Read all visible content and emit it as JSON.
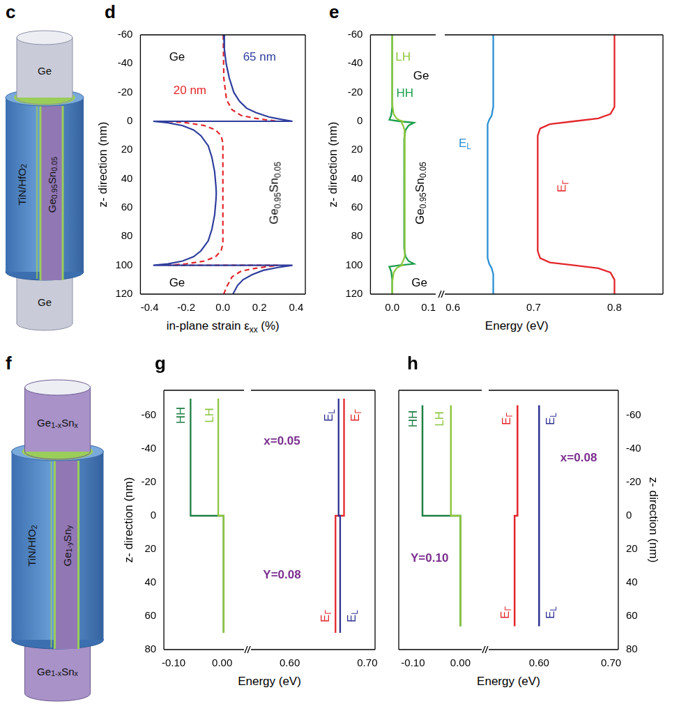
{
  "figure": {
    "c": {
      "panel": "c",
      "top": "Ge",
      "shell": "TiN/HfO2",
      "core": "Ge0.95Sn0.05",
      "bottom": "Ge"
    },
    "f": {
      "panel": "f",
      "top": "Ge1-xSnx",
      "shell": "TiN/HfO2",
      "core": "Ge1-ySny",
      "bottom": "Ge1-xSnx"
    }
  },
  "chart_data": [
    {
      "panel": "d",
      "type": "line",
      "x_label": "in-plane strain εxx (%)",
      "y_label": "z- direction (nm)",
      "xlim": [
        -0.45,
        0.45
      ],
      "xticks": [
        -0.4,
        -0.2,
        {
          "value": 0,
          "label": "0.0"
        },
        0.2,
        0.4
      ],
      "ylim": [
        120,
        -60
      ],
      "yticks": [
        -60,
        -40,
        -20,
        0,
        20,
        40,
        60,
        80,
        100,
        120
      ],
      "grid": false,
      "series": [
        {
          "name": "65 nm",
          "color": "#2e3d9c",
          "line_style": "solid",
          "x": [
            0.005,
            0.008,
            0.018,
            0.035,
            0.06,
            0.09,
            0.13,
            0.18,
            0.25,
            0.31,
            0.38,
            -0.38,
            -0.3,
            -0.22,
            -0.16,
            -0.12,
            -0.08,
            -0.06,
            -0.045,
            -0.038,
            -0.036,
            -0.038,
            -0.045,
            -0.06,
            -0.08,
            -0.12,
            -0.16,
            -0.22,
            -0.3,
            -0.38,
            0.38,
            0.3,
            0.22,
            0.16,
            0.11,
            0.08,
            0.055
          ],
          "y": [
            -60,
            -50,
            -40,
            -30,
            -20,
            -14,
            -9,
            -6,
            -3,
            -1.5,
            0,
            0,
            1,
            3,
            6,
            10,
            17,
            25,
            35,
            45,
            50,
            55,
            65,
            75,
            83,
            90,
            94,
            97,
            99,
            100,
            100,
            101.5,
            103.5,
            106.5,
            110,
            114,
            120
          ]
        },
        {
          "name": "20 nm",
          "color": "#e3262b",
          "line_style": "dashed",
          "x": [
            0.002,
            0.005,
            0.02,
            0.05,
            0.1,
            0.18,
            0.3,
            -0.3,
            -0.2,
            -0.1,
            -0.04,
            -0.01,
            0,
            0,
            -0.01,
            -0.04,
            -0.1,
            -0.2,
            -0.3,
            0.3,
            0.18,
            0.1,
            0.05,
            0.02,
            0.005
          ],
          "y": [
            -60,
            -30,
            -15,
            -8,
            -4,
            -2,
            0,
            0,
            1,
            3,
            6,
            10,
            15,
            85,
            90,
            94,
            97,
            99,
            100,
            100,
            102,
            104,
            108,
            115,
            120
          ]
        }
      ],
      "annotations": [
        {
          "text": "Ge",
          "x": -0.25,
          "y": -45,
          "color": "#000000"
        },
        {
          "text": "65 nm",
          "x": 0.2,
          "y": -45,
          "color": "#2e3d9c"
        },
        {
          "text": "20 nm",
          "x": -0.18,
          "y": -22,
          "color": "#e3262b"
        },
        {
          "text": "Ge0.95Sn0.05",
          "x": 0.28,
          "y": 50,
          "color": "#000000",
          "orientation": "vertical"
        },
        {
          "text": "Ge",
          "x": -0.25,
          "y": 112,
          "color": "#000000"
        }
      ]
    },
    {
      "panel": "e",
      "type": "line",
      "x_label": "Energy (eV)",
      "y_label": "z- direction (nm)",
      "xlim": [
        [
          -0.06,
          0.12
        ],
        [
          0.59,
          0.86
        ]
      ],
      "xticks": [
        [
          {
            "value": 0,
            "label": "0.0"
          },
          0.1
        ],
        [
          0.6,
          0.7,
          0.8
        ]
      ],
      "ylim": [
        120,
        -60
      ],
      "yticks": [
        -60,
        -40,
        -20,
        0,
        20,
        40,
        60,
        80,
        100,
        120
      ],
      "grid": false,
      "series": [
        {
          "name": "LH",
          "color": "#8dc63f",
          "line_style": "solid",
          "x": [
            0,
            0,
            0.004,
            0.012,
            0.022,
            0.03,
            0.026,
            0.03,
            0.034,
            0.035,
            0.035,
            0.034,
            0.03,
            0.026,
            0.03,
            0.022,
            0.012,
            0.004,
            0,
            0
          ],
          "y": [
            -60,
            -12,
            -5,
            -2,
            -0.5,
            0,
            1,
            3,
            6,
            12,
            88,
            94,
            97,
            99,
            100,
            100.5,
            102,
            105,
            112,
            120
          ]
        },
        {
          "name": "HH",
          "color": "#1b9e4b",
          "line_style": "solid",
          "x": [
            0,
            0,
            -0.003,
            -0.008,
            0.02,
            0.06,
            0.045,
            0.037,
            0.033,
            0.033,
            0.037,
            0.045,
            0.06,
            0.02,
            -0.008,
            -0.003,
            0,
            0
          ],
          "y": [
            -60,
            -10,
            -4,
            -1,
            0,
            1,
            3,
            6,
            12,
            88,
            94,
            97,
            99,
            100,
            101,
            104,
            110,
            120
          ]
        },
        {
          "name": "EL",
          "color": "#2a8fd4",
          "line_style": "solid",
          "x": [
            0.65,
            0.65,
            0.648,
            0.645,
            0.643,
            0.643,
            0.643,
            0.645,
            0.648,
            0.65,
            0.65
          ],
          "y": [
            -60,
            -10,
            -4,
            -1,
            2,
            5,
            95,
            99,
            102,
            106,
            120
          ]
        },
        {
          "name": "EΓ",
          "color": "#e3262b",
          "line_style": "solid",
          "x": [
            0.8,
            0.8,
            0.795,
            0.78,
            0.75,
            0.72,
            0.708,
            0.705,
            0.705,
            0.708,
            0.72,
            0.75,
            0.78,
            0.795,
            0.8,
            0.8
          ],
          "y": [
            -60,
            -10,
            -5,
            -2,
            0,
            2,
            5,
            10,
            90,
            95,
            98,
            100,
            102,
            105,
            110,
            120
          ]
        }
      ],
      "annotations": [
        {
          "text": "LH",
          "x": 0.03,
          "y": -45,
          "color": "#8dc63f"
        },
        {
          "text": "HH",
          "x": 0.035,
          "y": -20,
          "color": "#1b9e4b"
        },
        {
          "text": "Ge",
          "x": 0.08,
          "y": -32,
          "color": "#000000"
        },
        {
          "text": "Ge0.95Sn0.05",
          "x": 0.075,
          "y": 50,
          "color": "#000000",
          "orientation": "vertical"
        },
        {
          "text": "Ge",
          "x": 0.075,
          "y": 112,
          "color": "#000000"
        },
        {
          "text": "EL",
          "x": 0.615,
          "y": 15,
          "color": "#2a8fd4"
        },
        {
          "text": "EΓ",
          "x": 0.735,
          "y": 45,
          "color": "#e3262b",
          "orientation": "vertical"
        }
      ]
    },
    {
      "panel": "g",
      "type": "line",
      "x_label": "Energy (eV)",
      "y_label": "z- direction (nm)",
      "xlim": [
        [
          -0.12,
          0.045
        ],
        [
          0.55,
          0.71
        ]
      ],
      "xticks": [
        [
          {
            "value": -0.1,
            "label": "-0.10"
          },
          {
            "value": 0,
            "label": "0.00"
          }
        ],
        [
          {
            "value": 0.6,
            "label": "0.60"
          },
          {
            "value": 0.7,
            "label": "0.70"
          }
        ]
      ],
      "ylim": [
        80,
        -75
      ],
      "yticks": [
        -60,
        -40,
        -20,
        0,
        20,
        40,
        60,
        80
      ],
      "grid": false,
      "series": [
        {
          "name": "LH",
          "color": "#8dc63f",
          "line_style": "solid",
          "x": [
            -0.008,
            -0.008,
            0.003,
            0.003
          ],
          "y": [
            -70,
            0,
            0,
            70
          ]
        },
        {
          "name": "HH",
          "color": "#1f7f45",
          "line_style": "solid",
          "x": [
            -0.065,
            -0.065,
            0.003,
            0.003
          ],
          "y": [
            -70,
            0,
            0,
            70
          ]
        },
        {
          "name": "EL",
          "color": "#2e3192",
          "line_style": "solid",
          "x": [
            0.663,
            0.663,
            0.665,
            0.665
          ],
          "y": [
            -70,
            0,
            0,
            70
          ]
        },
        {
          "name": "EΓ",
          "color": "#e3262b",
          "line_style": "solid",
          "x": [
            0.67,
            0.67,
            0.659,
            0.659
          ],
          "y": [
            -70,
            0,
            0,
            70
          ]
        }
      ],
      "annotations": [
        {
          "text": "HH",
          "x": -0.085,
          "y": -60,
          "color": "#1f7f45",
          "orientation": "vertical"
        },
        {
          "text": "LH",
          "x": -0.027,
          "y": -60,
          "color": "#8dc63f",
          "orientation": "vertical"
        },
        {
          "text": "EL",
          "x": 0.65,
          "y": -60,
          "color": "#2e3192",
          "orientation": "vertical"
        },
        {
          "text": "EΓ",
          "x": 0.684,
          "y": -60,
          "color": "#e3262b",
          "orientation": "vertical"
        },
        {
          "text": "EΓ",
          "x": 0.645,
          "y": 60,
          "color": "#e3262b",
          "orientation": "vertical"
        },
        {
          "text": "EL",
          "x": 0.679,
          "y": 60,
          "color": "#2e3192",
          "orientation": "vertical"
        },
        {
          "text": "x=0.05",
          "x": 0.59,
          "y": -45,
          "color": "#7a2e8e"
        },
        {
          "text": "Y=0.08",
          "x": 0.59,
          "y": 35,
          "color": "#7a2e8e"
        }
      ]
    },
    {
      "panel": "h",
      "type": "line",
      "x_label": "Energy (eV)",
      "y_label": "z- direction (nm)",
      "xlim": [
        [
          -0.13,
          0.045
        ],
        [
          0.53,
          0.71
        ]
      ],
      "xticks": [
        [
          {
            "value": -0.1,
            "label": "-0.10"
          },
          {
            "value": 0,
            "label": "0.00"
          }
        ],
        [
          {
            "value": 0.6,
            "label": "0.60"
          },
          {
            "value": 0.7,
            "label": "0.70"
          }
        ]
      ],
      "y2lim": [
        80,
        -75
      ],
      "y2ticks": [
        -60,
        -40,
        -20,
        0,
        20,
        40,
        60,
        80
      ],
      "grid": false,
      "series": [
        {
          "name": "LH",
          "color": "#8dc63f",
          "line_style": "solid",
          "axis": "y2",
          "x": [
            -0.02,
            -0.02,
            0,
            0
          ],
          "y": [
            -66,
            0,
            0,
            66
          ]
        },
        {
          "name": "HH",
          "color": "#1f7f45",
          "line_style": "solid",
          "axis": "y2",
          "x": [
            -0.08,
            -0.08,
            0,
            0
          ],
          "y": [
            -66,
            0,
            0,
            66
          ]
        },
        {
          "name": "EL",
          "color": "#2e3192",
          "line_style": "solid",
          "axis": "y2",
          "x": [
            0.6,
            0.6,
            0.6,
            0.6
          ],
          "y": [
            -66,
            0,
            0,
            66
          ]
        },
        {
          "name": "EΓ",
          "color": "#e3262b",
          "line_style": "solid",
          "axis": "y2",
          "x": [
            0.57,
            0.57,
            0.566,
            0.566
          ],
          "y": [
            -66,
            0,
            0,
            66
          ]
        }
      ],
      "annotations": [
        {
          "text": "HH",
          "x": -0.1,
          "y": -58,
          "color": "#1f7f45",
          "orientation": "vertical"
        },
        {
          "text": "LH",
          "x": -0.045,
          "y": -58,
          "color": "#8dc63f",
          "orientation": "vertical"
        },
        {
          "text": "EΓ",
          "x": 0.554,
          "y": -58,
          "color": "#e3262b",
          "orientation": "vertical"
        },
        {
          "text": "EL",
          "x": 0.615,
          "y": -58,
          "color": "#2e3192",
          "orientation": "vertical"
        },
        {
          "text": "EΓ",
          "x": 0.552,
          "y": 58,
          "color": "#e3262b",
          "orientation": "vertical"
        },
        {
          "text": "EL",
          "x": 0.615,
          "y": 58,
          "color": "#2e3192",
          "orientation": "vertical"
        },
        {
          "text": "x=0.08",
          "x": 0.655,
          "y": -35,
          "color": "#7a2e8e"
        },
        {
          "text": "Y=0.10",
          "x": -0.065,
          "y": 25,
          "color": "#7a2e8e"
        }
      ]
    }
  ]
}
